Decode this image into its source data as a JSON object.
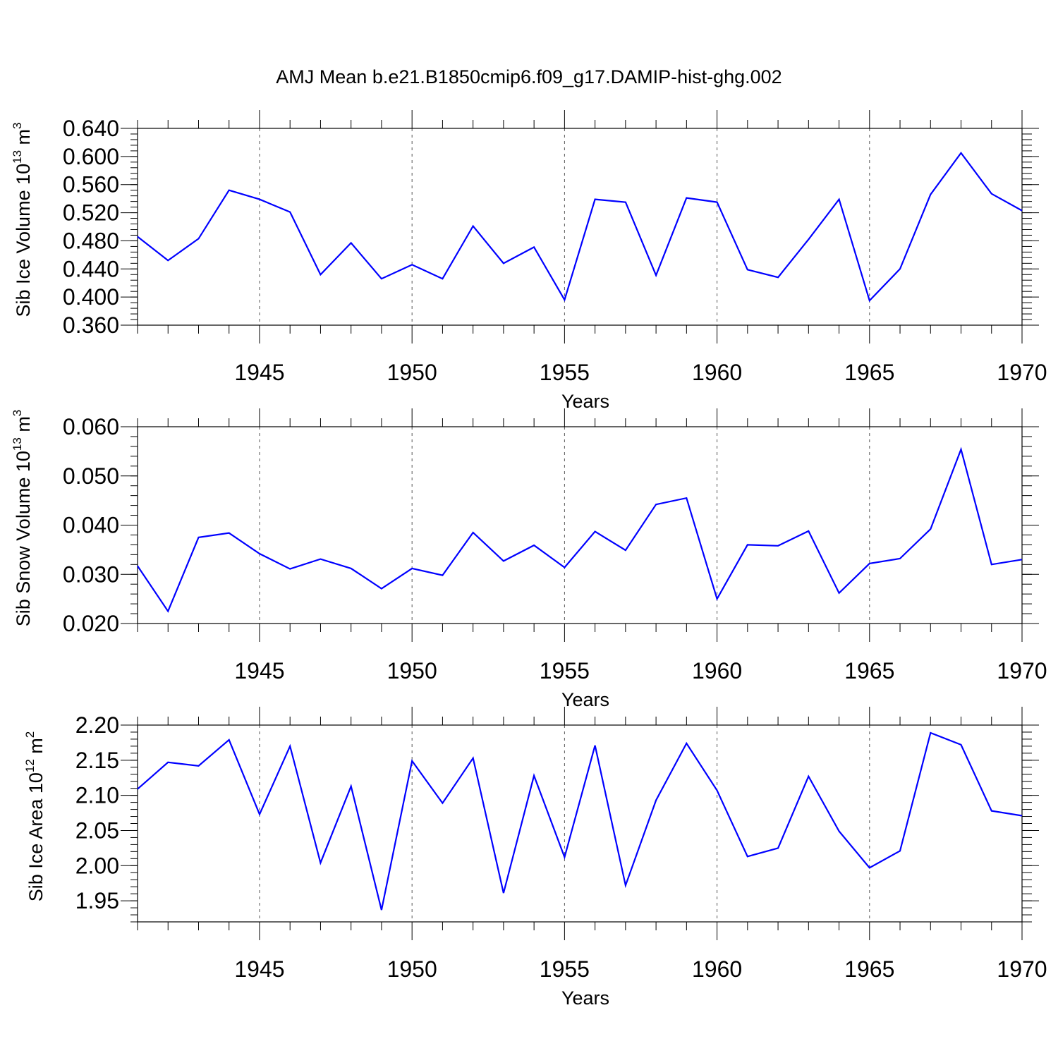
{
  "title": "AMJ Mean b.e21.B1850cmip6.f09_g17.DAMIP-hist-ghg.002",
  "line_color": "#0000ff",
  "chart_data": [
    {
      "type": "line",
      "title": "AMJ Mean b.e21.B1850cmip6.f09_g17.DAMIP-hist-ghg.002",
      "ylabel_main": "Sib Ice Volume 10",
      "ylabel_exp": "13",
      "ylabel_unit": " m",
      "ylabel_unit_exp": "3",
      "xlabel": "Years",
      "x": [
        1941,
        1942,
        1943,
        1944,
        1945,
        1946,
        1947,
        1948,
        1949,
        1950,
        1951,
        1952,
        1953,
        1954,
        1955,
        1956,
        1957,
        1958,
        1959,
        1960,
        1961,
        1962,
        1963,
        1964,
        1965,
        1966,
        1967,
        1968,
        1969,
        1970
      ],
      "y": [
        0.486,
        0.452,
        0.483,
        0.552,
        0.539,
        0.521,
        0.432,
        0.477,
        0.426,
        0.446,
        0.426,
        0.501,
        0.448,
        0.471,
        0.396,
        0.539,
        0.535,
        0.431,
        0.541,
        0.535,
        0.439,
        0.428,
        0.482,
        0.539,
        0.395,
        0.44,
        0.546,
        0.605,
        0.547,
        0.523
      ],
      "xlim": [
        1941,
        1970
      ],
      "ylim": [
        0.36,
        0.64
      ],
      "yticks": [
        0.36,
        0.4,
        0.44,
        0.48,
        0.52,
        0.56,
        0.6,
        0.64
      ],
      "ytick_labels": [
        "0.360",
        "0.400",
        "0.440",
        "0.480",
        "0.520",
        "0.560",
        "0.600",
        "0.640"
      ],
      "xticks": [
        1945,
        1950,
        1955,
        1960,
        1965,
        1970
      ],
      "xtick_labels": [
        "1945",
        "1950",
        "1955",
        "1960",
        "1965",
        "1970"
      ]
    },
    {
      "type": "line",
      "ylabel_main": "Sib Snow Volume 10",
      "ylabel_exp": "13",
      "ylabel_unit": " m",
      "ylabel_unit_exp": "3",
      "xlabel": "Years",
      "x": [
        1941,
        1942,
        1943,
        1944,
        1945,
        1946,
        1947,
        1948,
        1949,
        1950,
        1951,
        1952,
        1953,
        1954,
        1955,
        1956,
        1957,
        1958,
        1959,
        1960,
        1961,
        1962,
        1963,
        1964,
        1965,
        1966,
        1967,
        1968,
        1969,
        1970
      ],
      "y": [
        0.0317,
        0.0225,
        0.0375,
        0.0384,
        0.0342,
        0.0311,
        0.0331,
        0.0312,
        0.0271,
        0.0312,
        0.0298,
        0.0385,
        0.0327,
        0.0359,
        0.0314,
        0.0387,
        0.0349,
        0.0442,
        0.0455,
        0.025,
        0.036,
        0.0358,
        0.0388,
        0.0262,
        0.0322,
        0.0332,
        0.0392,
        0.0554,
        0.032,
        0.033
      ],
      "xlim": [
        1941,
        1970
      ],
      "ylim": [
        0.02,
        0.06
      ],
      "yticks": [
        0.02,
        0.03,
        0.04,
        0.05,
        0.06
      ],
      "ytick_labels": [
        "0.020",
        "0.030",
        "0.040",
        "0.050",
        "0.060"
      ],
      "xticks": [
        1945,
        1950,
        1955,
        1960,
        1965,
        1970
      ],
      "xtick_labels": [
        "1945",
        "1950",
        "1955",
        "1960",
        "1965",
        "1970"
      ]
    },
    {
      "type": "line",
      "ylabel_main": "Sib Ice Area 10",
      "ylabel_exp": "12",
      "ylabel_unit": " m",
      "ylabel_unit_exp": "2",
      "xlabel": "Years",
      "x": [
        1941,
        1942,
        1943,
        1944,
        1945,
        1946,
        1947,
        1948,
        1949,
        1950,
        1951,
        1952,
        1953,
        1954,
        1955,
        1956,
        1957,
        1958,
        1959,
        1960,
        1961,
        1962,
        1963,
        1964,
        1965,
        1966,
        1967,
        1968,
        1969,
        1970
      ],
      "y": [
        2.109,
        2.147,
        2.142,
        2.179,
        2.073,
        2.17,
        2.004,
        2.113,
        1.937,
        2.149,
        2.089,
        2.153,
        1.961,
        2.128,
        2.012,
        2.171,
        1.972,
        2.093,
        2.174,
        2.107,
        2.013,
        2.025,
        2.127,
        2.049,
        1.997,
        2.021,
        2.189,
        2.172,
        2.078,
        2.071
      ],
      "xlim": [
        1941,
        1970
      ],
      "ylim": [
        1.92,
        2.2
      ],
      "yticks": [
        1.95,
        2.0,
        2.05,
        2.1,
        2.15,
        2.2
      ],
      "ytick_labels": [
        "1.95",
        "2.00",
        "2.05",
        "2.10",
        "2.15",
        "2.20"
      ],
      "xticks": [
        1945,
        1950,
        1955,
        1960,
        1965,
        1970
      ],
      "xtick_labels": [
        "1945",
        "1950",
        "1955",
        "1960",
        "1965",
        "1970"
      ]
    }
  ]
}
